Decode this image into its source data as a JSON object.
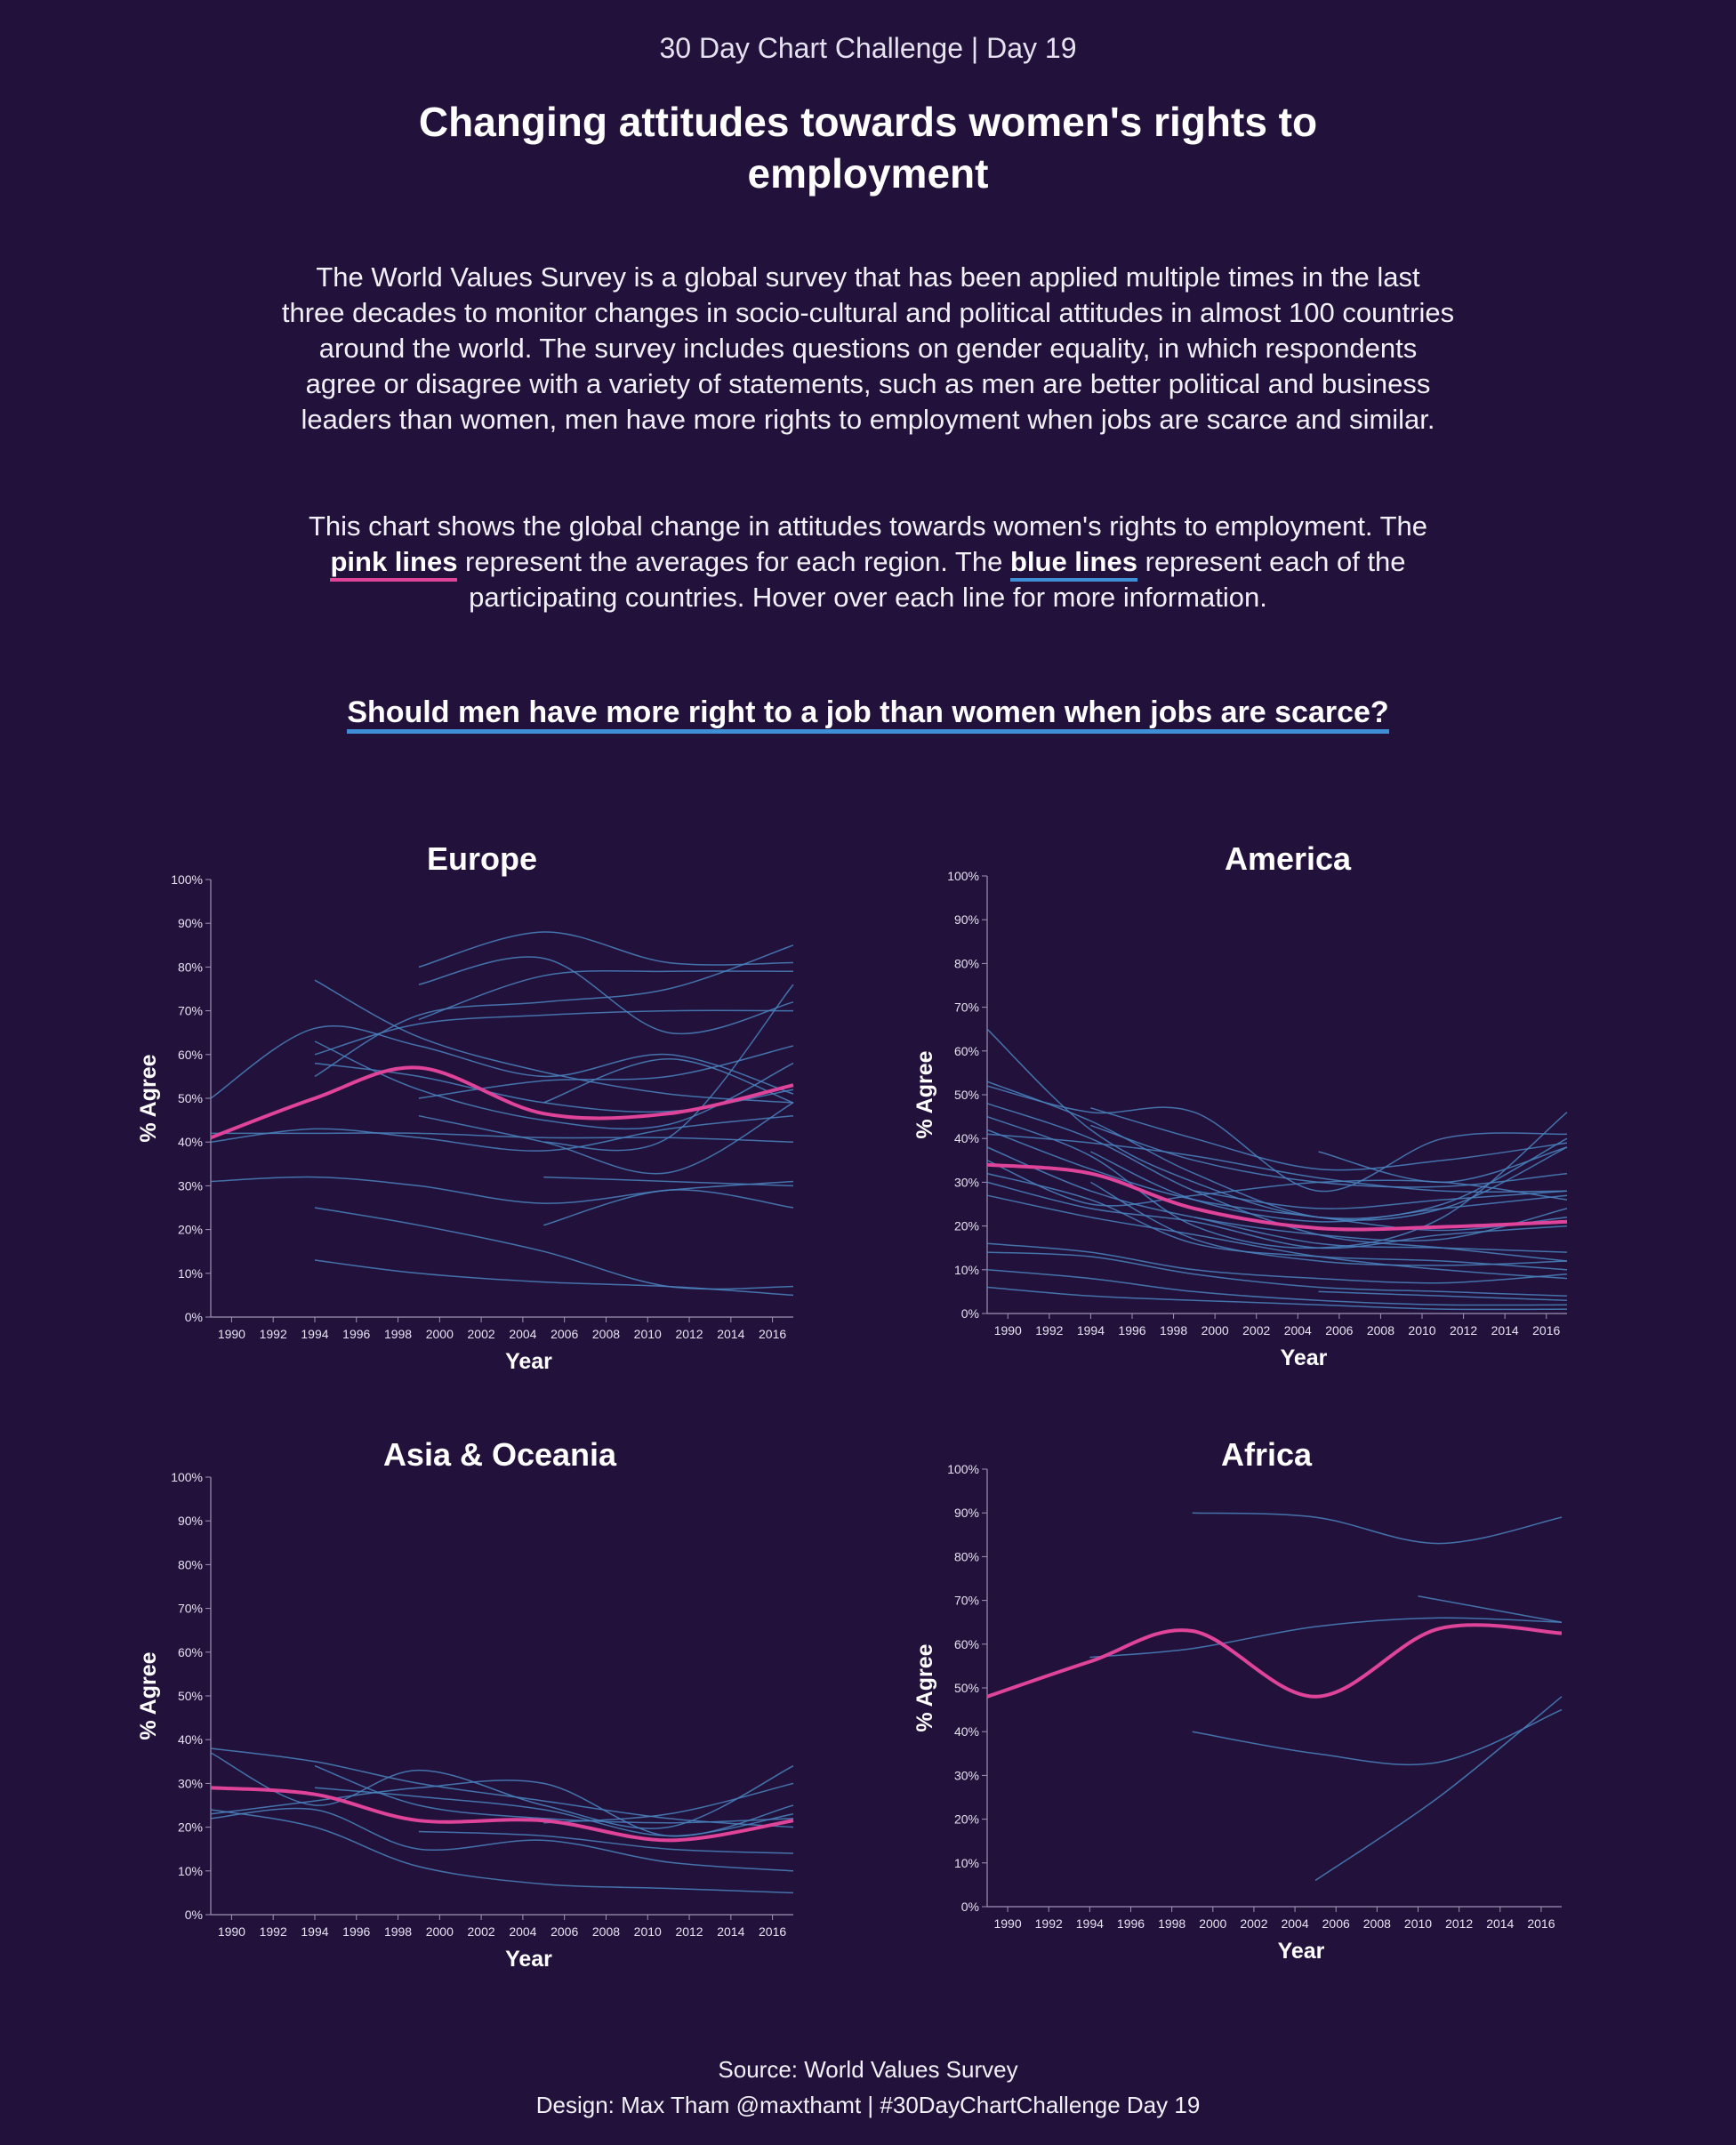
{
  "header": {
    "kicker": "30 Day Chart Challenge | Day 19",
    "title": "Changing attitudes towards women's rights to employment"
  },
  "intro": {
    "paragraph1": "The World Values Survey is a global survey that has been applied multiple times in the last three decades to monitor changes in socio-cultural and political attitudes in almost 100 countries around the world. The survey includes questions on gender equality, in which respondents agree or disagree with a variety of statements, such as men are better political and business leaders than women, men have more rights to employment when jobs are scarce and similar.",
    "p2_before": "This chart shows the global change in attitudes towards women's rights to employment. The ",
    "p2_pink": "pink lines",
    "p2_middle": " represent the averages for each region. The ",
    "p2_blue": "blue lines",
    "p2_after": " represent each of the participating countries. Hover over each line for more information."
  },
  "question": "Should men have more right to a job than women when jobs are scarce?",
  "footer": {
    "source": "Source: World Values Survey",
    "design": "Design: Max Tham @maxthamt | #30DayChartChallenge Day 19"
  },
  "colors": {
    "background": "#22123b",
    "average_line": "#e0449a",
    "country_line": "#4a84c0",
    "axis": "#9c93b5"
  },
  "chart_data": [
    {
      "type": "line",
      "title": "Europe",
      "xlabel": "Year",
      "ylabel": "% Agree",
      "xlim": [
        1989,
        2017
      ],
      "ylim": [
        0,
        100
      ],
      "x_ticks": [
        "1990",
        "1992",
        "1994",
        "1996",
        "1998",
        "2000",
        "2002",
        "2004",
        "2006",
        "2008",
        "2010",
        "2012",
        "2014",
        "2016"
      ],
      "y_ticks": [
        "0%",
        "10%",
        "20%",
        "30%",
        "40%",
        "50%",
        "60%",
        "70%",
        "80%",
        "90%",
        "100%"
      ],
      "average": {
        "x": [
          1989,
          1994,
          1999,
          2005,
          2011,
          2017
        ],
        "y": [
          41,
          50,
          57,
          46.5,
          46.5,
          53
        ]
      },
      "countries": [
        {
          "x": [
            1989,
            1994,
            1999,
            2005,
            2011,
            2017
          ],
          "y": [
            50,
            66,
            62,
            55,
            60,
            51
          ]
        },
        {
          "x": [
            1989,
            1994,
            1999,
            2005,
            2011,
            2017
          ],
          "y": [
            40,
            43,
            41,
            38,
            43,
            46
          ]
        },
        {
          "x": [
            1989,
            1994,
            1999,
            2005,
            2011,
            2017
          ],
          "y": [
            42,
            42,
            42,
            41,
            41,
            40
          ]
        },
        {
          "x": [
            1989,
            1994,
            1999,
            2005,
            2011,
            2017
          ],
          "y": [
            31,
            32,
            30,
            26,
            29,
            31
          ]
        },
        {
          "x": [
            1994,
            1999,
            2005,
            2011,
            2017
          ],
          "y": [
            25,
            21,
            15,
            7,
            7
          ]
        },
        {
          "x": [
            1994,
            1999,
            2005,
            2011,
            2017
          ],
          "y": [
            13,
            10,
            8,
            7,
            5
          ]
        },
        {
          "x": [
            1994,
            1999,
            2005,
            2011,
            2017
          ],
          "y": [
            77,
            64,
            56,
            51,
            49
          ]
        },
        {
          "x": [
            1994,
            1999,
            2005,
            2011,
            2017
          ],
          "y": [
            63,
            52,
            45,
            44,
            58
          ]
        },
        {
          "x": [
            1994,
            1999,
            2005,
            2011,
            2017
          ],
          "y": [
            58,
            55,
            49,
            47,
            52
          ]
        },
        {
          "x": [
            1994,
            1999,
            2005,
            2011,
            2017
          ],
          "y": [
            55,
            69,
            72,
            75,
            85
          ]
        },
        {
          "x": [
            1994,
            1999,
            2005,
            2011,
            2017
          ],
          "y": [
            60,
            67,
            69,
            70,
            70
          ]
        },
        {
          "x": [
            1999,
            2005,
            2011,
            2017
          ],
          "y": [
            80,
            88,
            81,
            81
          ]
        },
        {
          "x": [
            1999,
            2005,
            2011,
            2017
          ],
          "y": [
            76,
            82,
            65,
            72
          ]
        },
        {
          "x": [
            1999,
            2005,
            2011,
            2017
          ],
          "y": [
            68,
            78,
            79,
            79
          ]
        },
        {
          "x": [
            1999,
            2005,
            2011,
            2017
          ],
          "y": [
            50,
            54,
            55,
            62
          ]
        },
        {
          "x": [
            1999,
            2005,
            2011,
            2017
          ],
          "y": [
            46,
            40,
            33,
            49
          ]
        },
        {
          "x": [
            2005,
            2011,
            2017
          ],
          "y": [
            49,
            59,
            49
          ]
        },
        {
          "x": [
            2005,
            2011,
            2017
          ],
          "y": [
            32,
            31,
            30
          ]
        },
        {
          "x": [
            2005,
            2011,
            2017
          ],
          "y": [
            21,
            29,
            25
          ]
        },
        {
          "x": [
            2005,
            2011,
            2017
          ],
          "y": [
            40,
            41,
            76
          ]
        }
      ]
    },
    {
      "type": "line",
      "title": "America",
      "xlabel": "Year",
      "ylabel": "% Agree",
      "xlim": [
        1989,
        2017
      ],
      "ylim": [
        0,
        100
      ],
      "x_ticks": [
        "1990",
        "1992",
        "1994",
        "1996",
        "1998",
        "2000",
        "2002",
        "2004",
        "2006",
        "2008",
        "2010",
        "2012",
        "2014",
        "2016"
      ],
      "y_ticks": [
        "0%",
        "10%",
        "20%",
        "30%",
        "40%",
        "50%",
        "60%",
        "70%",
        "80%",
        "90%",
        "100%"
      ],
      "average": {
        "x": [
          1989,
          1994,
          1999,
          2005,
          2011,
          2017
        ],
        "y": [
          34,
          32,
          24,
          19.5,
          19.8,
          21
        ]
      },
      "countries": [
        {
          "x": [
            1989,
            1994,
            1999,
            2005,
            2011,
            2017
          ],
          "y": [
            65,
            42,
            30,
            22,
            25,
            40
          ]
        },
        {
          "x": [
            1989,
            1994,
            1999,
            2005,
            2011,
            2017
          ],
          "y": [
            53,
            44,
            32,
            22,
            24,
            38
          ]
        },
        {
          "x": [
            1989,
            1994,
            1999,
            2005,
            2011,
            2017
          ],
          "y": [
            52,
            46,
            46,
            28,
            40,
            41
          ]
        },
        {
          "x": [
            1989,
            1994,
            1999,
            2005,
            2011,
            2017
          ],
          "y": [
            48,
            40,
            28,
            18,
            15,
            12
          ]
        },
        {
          "x": [
            1989,
            1994,
            1999,
            2005,
            2011,
            2017
          ],
          "y": [
            45,
            36,
            20,
            15,
            22,
            46
          ]
        },
        {
          "x": [
            1989,
            1994,
            1999,
            2005,
            2011,
            2017
          ],
          "y": [
            42,
            33,
            26,
            22,
            19,
            22
          ]
        },
        {
          "x": [
            1989,
            1994,
            1999,
            2005,
            2011,
            2017
          ],
          "y": [
            41,
            39,
            36,
            31,
            28,
            28
          ]
        },
        {
          "x": [
            1989,
            1994,
            1999,
            2005,
            2011,
            2017
          ],
          "y": [
            38,
            28,
            22,
            18,
            17,
            24
          ]
        },
        {
          "x": [
            1989,
            1994,
            1999,
            2005,
            2011,
            2017
          ],
          "y": [
            35,
            25,
            27,
            30,
            30,
            26
          ]
        },
        {
          "x": [
            1989,
            1994,
            1999,
            2005,
            2011,
            2017
          ],
          "y": [
            32,
            26,
            16,
            13,
            12,
            10
          ]
        },
        {
          "x": [
            1989,
            1994,
            1999,
            2005,
            2011,
            2017
          ],
          "y": [
            30,
            24,
            21,
            15,
            18,
            20
          ]
        },
        {
          "x": [
            1989,
            1994,
            1999,
            2005,
            2011,
            2017
          ],
          "y": [
            27,
            22,
            18,
            13,
            10,
            8
          ]
        },
        {
          "x": [
            1989,
            1994,
            1999,
            2005,
            2011,
            2017
          ],
          "y": [
            16,
            14,
            10,
            8,
            7,
            9
          ]
        },
        {
          "x": [
            1989,
            1994,
            1999,
            2005,
            2011,
            2017
          ],
          "y": [
            14,
            13,
            9,
            6,
            5,
            4
          ]
        },
        {
          "x": [
            1989,
            1994,
            1999,
            2005,
            2011,
            2017
          ],
          "y": [
            10,
            8,
            5,
            3,
            2,
            2
          ]
        },
        {
          "x": [
            1989,
            1994,
            1999,
            2005,
            2011,
            2017
          ],
          "y": [
            6,
            4,
            3,
            2,
            1,
            1
          ]
        },
        {
          "x": [
            1994,
            1999,
            2005,
            2011,
            2017
          ],
          "y": [
            47,
            40,
            33,
            35,
            39
          ]
        },
        {
          "x": [
            1994,
            1999,
            2005,
            2011,
            2017
          ],
          "y": [
            43,
            35,
            30,
            29,
            32
          ]
        },
        {
          "x": [
            1994,
            1999,
            2005,
            2011,
            2017
          ],
          "y": [
            37,
            26,
            21,
            24,
            27
          ]
        },
        {
          "x": [
            1994,
            1999,
            2005,
            2011,
            2017
          ],
          "y": [
            30,
            17,
            12,
            11,
            12
          ]
        },
        {
          "x": [
            1999,
            2005,
            2011,
            2017
          ],
          "y": [
            28,
            24,
            26,
            28
          ]
        },
        {
          "x": [
            1999,
            2005,
            2011,
            2017
          ],
          "y": [
            22,
            16,
            15,
            14
          ]
        },
        {
          "x": [
            2005,
            2011,
            2017
          ],
          "y": [
            37,
            30,
            38
          ]
        },
        {
          "x": [
            2005,
            2011,
            2017
          ],
          "y": [
            5,
            4,
            3
          ]
        }
      ]
    },
    {
      "type": "line",
      "title": "Asia & Oceania",
      "xlabel": "Year",
      "ylabel": "% Agree",
      "xlim": [
        1989,
        2017
      ],
      "ylim": [
        0,
        100
      ],
      "x_ticks": [
        "1990",
        "1992",
        "1994",
        "1996",
        "1998",
        "2000",
        "2002",
        "2004",
        "2006",
        "2008",
        "2010",
        "2012",
        "2014",
        "2016"
      ],
      "y_ticks": [
        "0%",
        "10%",
        "20%",
        "30%",
        "40%",
        "50%",
        "60%",
        "70%",
        "80%",
        "90%",
        "100%"
      ],
      "average": {
        "x": [
          1989,
          1994,
          1999,
          2005,
          2011,
          2017
        ],
        "y": [
          29,
          27.5,
          21.5,
          21.5,
          17,
          21.5
        ]
      },
      "countries": [
        {
          "x": [
            1989,
            1994,
            1999,
            2005,
            2011,
            2017
          ],
          "y": [
            38,
            35,
            30,
            26,
            22,
            20
          ]
        },
        {
          "x": [
            1989,
            1994,
            1999,
            2005,
            2011,
            2017
          ],
          "y": [
            37,
            25,
            33,
            25,
            20,
            34
          ]
        },
        {
          "x": [
            1989,
            1994,
            1999,
            2005,
            2011,
            2017
          ],
          "y": [
            24,
            20,
            11,
            7,
            6,
            5
          ]
        },
        {
          "x": [
            1989,
            1994,
            1999,
            2005,
            2011,
            2017
          ],
          "y": [
            23,
            26,
            29,
            30,
            18,
            25
          ]
        },
        {
          "x": [
            1989,
            1994,
            1999,
            2005,
            2011,
            2017
          ],
          "y": [
            22,
            24,
            15,
            17,
            12,
            10
          ]
        },
        {
          "x": [
            1994,
            1999,
            2005,
            2011,
            2017
          ],
          "y": [
            34,
            25,
            22,
            21,
            22
          ]
        },
        {
          "x": [
            1994,
            1999,
            2005,
            2011,
            2017
          ],
          "y": [
            29,
            27,
            24,
            18,
            23
          ]
        },
        {
          "x": [
            1999,
            2005,
            2011,
            2017
          ],
          "y": [
            19,
            18,
            15,
            14
          ]
        },
        {
          "x": [
            2005,
            2011,
            2017
          ],
          "y": [
            21,
            23,
            30
          ]
        }
      ]
    },
    {
      "type": "line",
      "title": "Africa",
      "xlabel": "Year",
      "ylabel": "% Agree",
      "xlim": [
        1989,
        2017
      ],
      "ylim": [
        0,
        100
      ],
      "x_ticks": [
        "1990",
        "1992",
        "1994",
        "1996",
        "1998",
        "2000",
        "2002",
        "2004",
        "2006",
        "2008",
        "2010",
        "2012",
        "2014",
        "2016"
      ],
      "y_ticks": [
        "0%",
        "10%",
        "20%",
        "30%",
        "40%",
        "50%",
        "60%",
        "70%",
        "80%",
        "90%",
        "100%"
      ],
      "average": {
        "x": [
          1989,
          1994,
          1999,
          2005,
          2011,
          2017
        ],
        "y": [
          48,
          56,
          63,
          48,
          63.5,
          62.5
        ]
      },
      "countries": [
        {
          "x": [
            1999,
            2005,
            2011,
            2017
          ],
          "y": [
            90,
            89,
            83,
            89
          ]
        },
        {
          "x": [
            2010,
            2017
          ],
          "y": [
            71,
            65
          ]
        },
        {
          "x": [
            1994,
            1999,
            2005,
            2011,
            2017
          ],
          "y": [
            57,
            59,
            64,
            66,
            65
          ]
        },
        {
          "x": [
            1999,
            2005,
            2011,
            2017
          ],
          "y": [
            40,
            35,
            33,
            45
          ]
        },
        {
          "x": [
            2005,
            2011,
            2017
          ],
          "y": [
            6,
            25,
            48
          ]
        }
      ]
    }
  ]
}
